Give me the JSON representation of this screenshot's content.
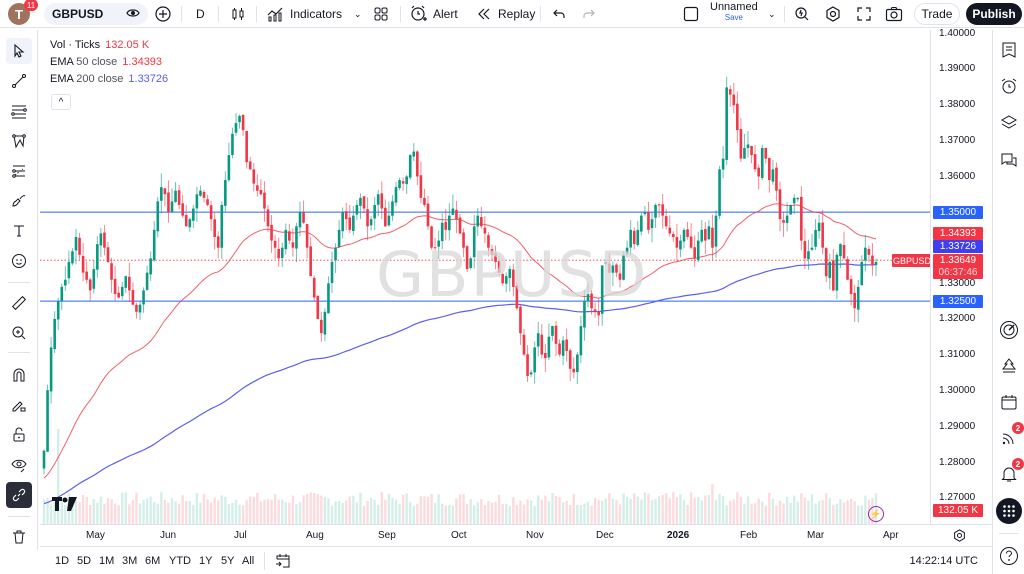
{
  "topbar": {
    "avatar_letter": "T",
    "notifications_badge": "11",
    "symbol": "GBPUSD",
    "interval": "D",
    "indicators_label": "Indicators",
    "alert_label": "Alert",
    "replay_label": "Replay",
    "layout_name": "Unnamed",
    "layout_save": "Save",
    "trade_label": "Trade",
    "publish_label": "Publish"
  },
  "legend": {
    "volume_label": "Vol · Ticks",
    "volume_value": "132.05 K",
    "ema50_label_bold": "EMA",
    "ema50_label": "50 close",
    "ema50_value": "1.34393",
    "ema200_label_bold": "EMA",
    "ema200_label": "200 close",
    "ema200_value": "1.33726",
    "collapse_icon": "^"
  },
  "watermark": "GBPUSD",
  "price_axis": {
    "labels": [
      "1.40000",
      "1.39000",
      "1.38000",
      "1.37000",
      "1.36000",
      "1.33000",
      "1.32000",
      "1.31000",
      "1.30000",
      "1.29000",
      "1.28000",
      "1.27000"
    ],
    "tags": {
      "line_upper": "1.35000",
      "ema50": "1.34393",
      "ema200": "1.33726",
      "last_price": "1.33649",
      "countdown": "06:37:46",
      "line_lower": "1.32500",
      "volume": "132.05 K"
    },
    "symbol_tag": "GBPUSD"
  },
  "time_axis": {
    "labels": [
      "May",
      "Jun",
      "Jul",
      "Aug",
      "Sep",
      "Oct",
      "Nov",
      "Dec",
      "2026",
      "Feb",
      "Mar",
      "Apr"
    ]
  },
  "bottombar": {
    "ranges": [
      "1D",
      "5D",
      "1M",
      "3M",
      "6M",
      "YTD",
      "1Y",
      "5Y",
      "All"
    ],
    "clock": "14:22:14 UTC"
  },
  "right_toolbar": {
    "ideas_badge": "2",
    "alerts_badge": "2"
  },
  "colors": {
    "up": "#089981",
    "down": "#f23645",
    "ema50": "#f23645",
    "ema200": "#5b5ff0",
    "hline": "#2962ff",
    "accent": "#2962ff"
  },
  "chart_data": {
    "type": "candlestick",
    "title": "GBPUSD Daily",
    "ylim": [
      1.265,
      1.401
    ],
    "horizontal_lines": [
      1.35,
      1.325
    ],
    "last_price": 1.33649,
    "ema50_last": 1.34393,
    "ema200_last": 1.33726,
    "x_labels": [
      "May",
      "Jun",
      "Jul",
      "Aug",
      "Sep",
      "Oct",
      "Nov",
      "Dec",
      "2026",
      "Feb",
      "Mar",
      "Apr"
    ],
    "closes": [
      1.283,
      1.3,
      1.312,
      1.32,
      1.325,
      1.329,
      1.331,
      1.336,
      1.339,
      1.343,
      1.338,
      1.333,
      1.331,
      1.328,
      1.334,
      1.341,
      1.344,
      1.34,
      1.336,
      1.331,
      1.327,
      1.326,
      1.329,
      1.332,
      1.328,
      1.324,
      1.322,
      1.324,
      1.328,
      1.333,
      1.337,
      1.345,
      1.353,
      1.357,
      1.355,
      1.35,
      1.353,
      1.356,
      1.352,
      1.349,
      1.346,
      1.348,
      1.351,
      1.355,
      1.356,
      1.354,
      1.352,
      1.348,
      1.343,
      1.34,
      1.352,
      1.359,
      1.366,
      1.372,
      1.375,
      1.377,
      1.373,
      1.364,
      1.362,
      1.358,
      1.356,
      1.355,
      1.351,
      1.346,
      1.342,
      1.34,
      1.337,
      1.34,
      1.345,
      1.342,
      1.34,
      1.346,
      1.35,
      1.347,
      1.34,
      1.332,
      1.326,
      1.32,
      1.316,
      1.322,
      1.33,
      1.336,
      1.34,
      1.345,
      1.35,
      1.348,
      1.345,
      1.349,
      1.352,
      1.354,
      1.351,
      1.346,
      1.348,
      1.352,
      1.355,
      1.351,
      1.346,
      1.349,
      1.353,
      1.357,
      1.359,
      1.358,
      1.36,
      1.366,
      1.367,
      1.36,
      1.354,
      1.352,
      1.346,
      1.34,
      1.34,
      1.342,
      1.347,
      1.345,
      1.349,
      1.351,
      1.348,
      1.344,
      1.34,
      1.334,
      1.337,
      1.346,
      1.349,
      1.346,
      1.344,
      1.34,
      1.338,
      1.336,
      1.333,
      1.33,
      1.332,
      1.334,
      1.329,
      1.323,
      1.316,
      1.31,
      1.304,
      1.305,
      1.312,
      1.316,
      1.31,
      1.309,
      1.315,
      1.318,
      1.313,
      1.31,
      1.314,
      1.311,
      1.306,
      1.305,
      1.31,
      1.318,
      1.325,
      1.327,
      1.323,
      1.322,
      1.321,
      1.335,
      1.336,
      1.333,
      1.335,
      1.333,
      1.331,
      1.338,
      1.34,
      1.345,
      1.341,
      1.345,
      1.349,
      1.35,
      1.345,
      1.348,
      1.352,
      1.352,
      1.349,
      1.346,
      1.344,
      1.343,
      1.34,
      1.342,
      1.345,
      1.343,
      1.34,
      1.337,
      1.342,
      1.345,
      1.342,
      1.346,
      1.34,
      1.349,
      1.362,
      1.365,
      1.385,
      1.383,
      1.38,
      1.373,
      1.365,
      1.368,
      1.369,
      1.366,
      1.362,
      1.36,
      1.368,
      1.365,
      1.359,
      1.362,
      1.356,
      1.348,
      1.347,
      1.349,
      1.352,
      1.354,
      1.354,
      1.342,
      1.337,
      1.339,
      1.34,
      1.345,
      1.347,
      1.34,
      1.332,
      1.336,
      1.328,
      1.338,
      1.341,
      1.337,
      1.331,
      1.327,
      1.323,
      1.329,
      1.336,
      1.34,
      1.338,
      1.335,
      1.336
    ]
  }
}
